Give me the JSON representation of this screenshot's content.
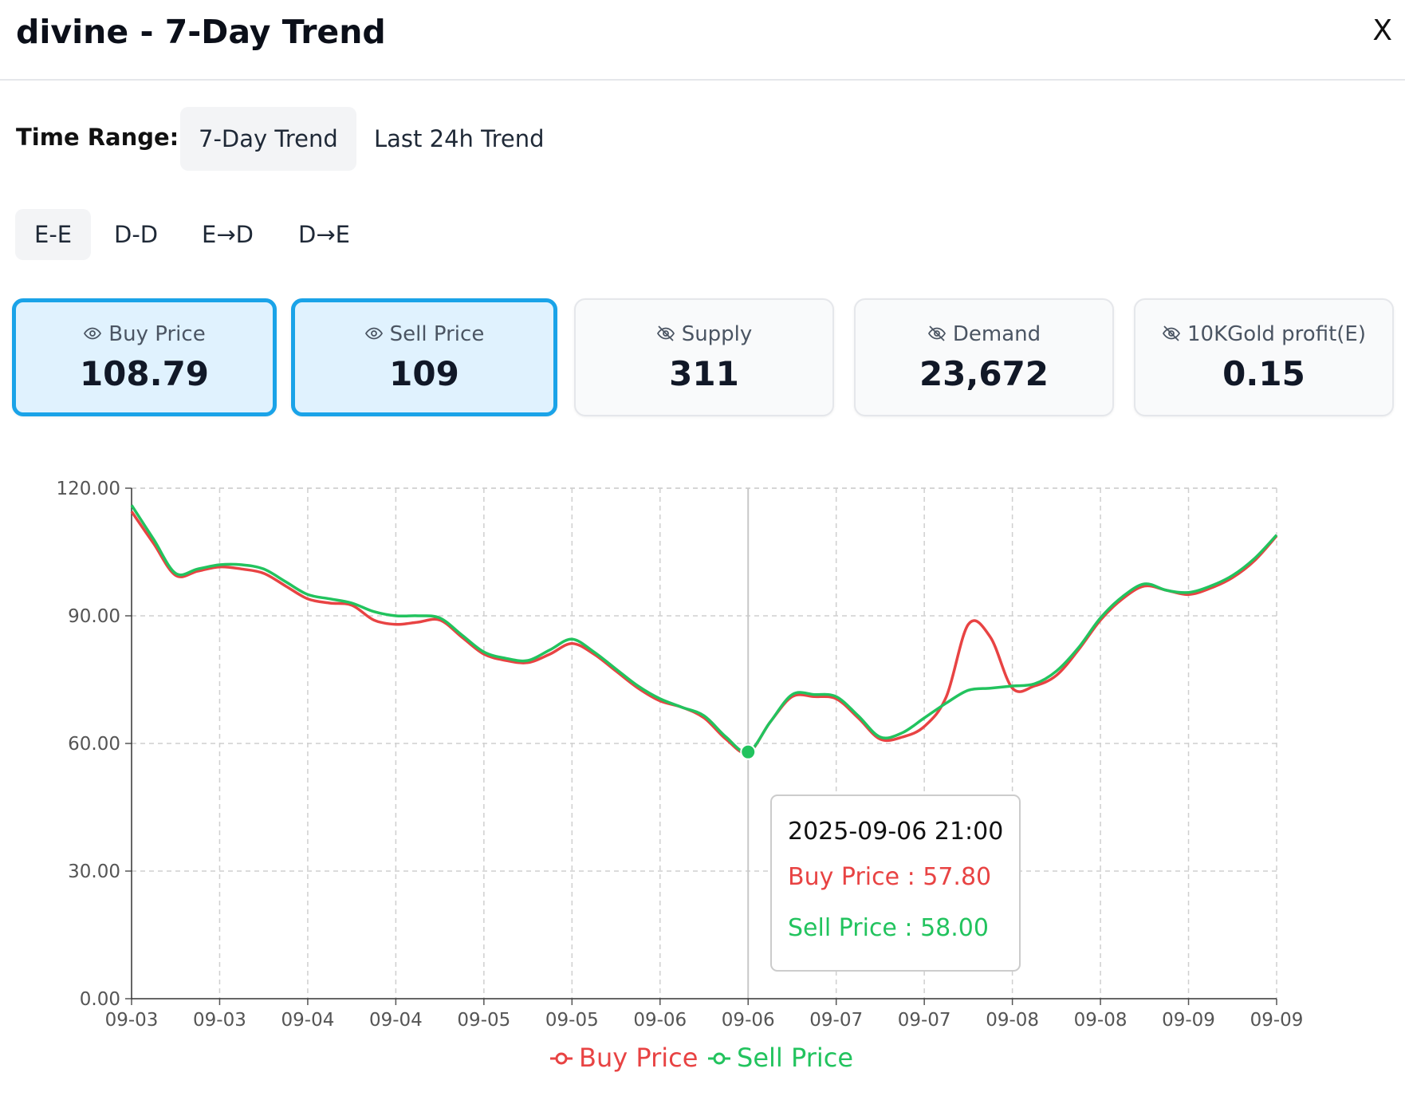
{
  "header": {
    "title": "divine - 7-Day Trend",
    "close_label": "X"
  },
  "time_range": {
    "label": "Time Range:",
    "options": [
      {
        "label": "7-Day Trend",
        "active": true
      },
      {
        "label": "Last 24h Trend",
        "active": false
      }
    ]
  },
  "modes": [
    {
      "label": "E-E",
      "active": true
    },
    {
      "label": "D-D",
      "active": false
    },
    {
      "label": "E→D",
      "active": false
    },
    {
      "label": "D→E",
      "active": false
    }
  ],
  "stats": [
    {
      "label": "Buy Price",
      "value": "108.79",
      "icon": "eye-icon",
      "selected": true
    },
    {
      "label": "Sell Price",
      "value": "109",
      "icon": "eye-icon",
      "selected": true
    },
    {
      "label": "Supply",
      "value": "311",
      "icon": "eye-off-icon",
      "selected": false
    },
    {
      "label": "Demand",
      "value": "23,672",
      "icon": "eye-off-icon",
      "selected": false
    },
    {
      "label": "10KGold profit(E)",
      "value": "0.15",
      "icon": "eye-off-icon",
      "selected": false
    }
  ],
  "colors": {
    "buy": "#e84343",
    "sell": "#22c35e",
    "accent": "#1aa3e8"
  },
  "chart_data": {
    "type": "line",
    "x_tick_labels": [
      "09-03",
      "09-03",
      "09-04",
      "09-04",
      "09-05",
      "09-05",
      "09-06",
      "09-06",
      "09-07",
      "09-07",
      "09-08",
      "09-08",
      "09-09",
      "09-09"
    ],
    "x": [
      0,
      0.25,
      0.5,
      0.75,
      1,
      1.25,
      1.5,
      1.75,
      2,
      2.25,
      2.5,
      2.75,
      3,
      3.25,
      3.5,
      3.75,
      4,
      4.25,
      4.5,
      4.75,
      5,
      5.25,
      5.5,
      5.75,
      6,
      6.25,
      6.5,
      6.75,
      7,
      7.25,
      7.5,
      7.75,
      8,
      8.25,
      8.5,
      8.75,
      9,
      9.25,
      9.5,
      9.75,
      10,
      10.25,
      10.5,
      10.75,
      11,
      11.25,
      11.5,
      11.75,
      12,
      12.25,
      12.5,
      12.75,
      13
    ],
    "series": [
      {
        "name": "Buy Price",
        "color": "#e84343",
        "values": [
          114.5,
          107,
          99.5,
          100.5,
          101.5,
          101,
          100,
          97,
          94,
          93,
          92.5,
          89,
          88,
          88.5,
          89,
          85,
          81,
          79.5,
          79,
          81,
          83.5,
          81,
          77,
          73,
          70,
          68.5,
          66,
          61,
          57.8,
          65,
          71,
          71,
          70.5,
          66,
          61,
          61.5,
          64,
          71,
          88,
          85,
          73,
          73.5,
          76,
          82,
          89,
          94,
          97,
          96,
          95,
          96.5,
          99,
          103,
          108.79
        ]
      },
      {
        "name": "Sell Price",
        "color": "#22c35e",
        "values": [
          116,
          108,
          100,
          101,
          102,
          102,
          101,
          98,
          95,
          94,
          93,
          91,
          90,
          90,
          89.5,
          85.5,
          81.5,
          80,
          79.5,
          82,
          84.5,
          81.5,
          77.5,
          73.5,
          70.5,
          68.5,
          66.5,
          61.5,
          58,
          65,
          71.5,
          71.5,
          71,
          66.5,
          61.5,
          62.5,
          66,
          69.5,
          72.5,
          73,
          73.5,
          74,
          77,
          82.5,
          89.5,
          94.5,
          97.5,
          96,
          95.5,
          97,
          99.5,
          103.5,
          109
        ]
      }
    ],
    "yticks": [
      "120.00",
      "90.00",
      "60.00",
      "30.00",
      "0.00"
    ],
    "ylim": [
      0,
      120
    ],
    "grid": true,
    "legend": {
      "position": "bottom-center",
      "items": [
        "Buy Price",
        "Sell Price"
      ]
    },
    "tooltip": {
      "title": "2025-09-06 21:00",
      "rows": [
        {
          "label": "Buy Price : 57.80",
          "color": "#e84343"
        },
        {
          "label": "Sell Price : 58.00",
          "color": "#22c35e"
        }
      ],
      "hover_x": 7
    }
  }
}
